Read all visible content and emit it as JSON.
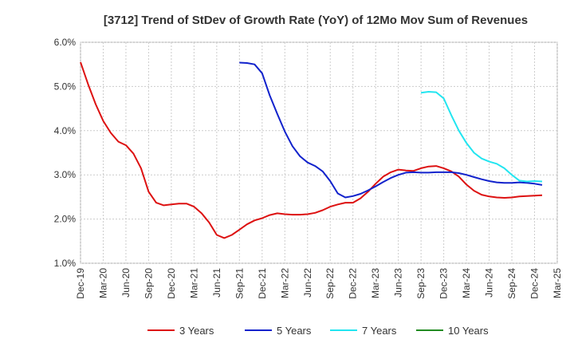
{
  "chart_data": {
    "type": "line",
    "title": "[3712]  Trend of StDev of Growth Rate (YoY) of 12Mo Mov Sum of Revenues",
    "xlabel": "",
    "ylabel": "",
    "ylim": [
      1.0,
      6.0
    ],
    "y_ticks": [
      1.0,
      2.0,
      3.0,
      4.0,
      5.0,
      6.0
    ],
    "y_tick_labels": [
      "1.0%",
      "2.0%",
      "3.0%",
      "4.0%",
      "5.0%",
      "6.0%"
    ],
    "x_tick_labels": [
      "Dec-19",
      "Mar-20",
      "Jun-20",
      "Sep-20",
      "Dec-20",
      "Mar-21",
      "Jun-21",
      "Sep-21",
      "Dec-21",
      "Mar-22",
      "Jun-22",
      "Sep-22",
      "Dec-22",
      "Mar-23",
      "Jun-23",
      "Sep-23",
      "Dec-23",
      "Mar-24",
      "Jun-24",
      "Sep-24",
      "Dec-24",
      "Mar-25"
    ],
    "x_range_months": [
      0,
      63
    ],
    "grid": true,
    "legend_position": "bottom",
    "series": [
      {
        "name": "3 Years",
        "color": "#dd1111",
        "start_month": 0,
        "values": [
          5.55,
          5.05,
          4.6,
          4.22,
          3.95,
          3.75,
          3.67,
          3.48,
          3.15,
          2.62,
          2.37,
          2.31,
          2.33,
          2.35,
          2.35,
          2.28,
          2.13,
          1.92,
          1.64,
          1.57,
          1.64,
          1.76,
          1.88,
          1.97,
          2.02,
          2.09,
          2.13,
          2.11,
          2.1,
          2.1,
          2.11,
          2.14,
          2.2,
          2.28,
          2.33,
          2.37,
          2.37,
          2.47,
          2.62,
          2.8,
          2.96,
          3.06,
          3.12,
          3.1,
          3.09,
          3.15,
          3.19,
          3.2,
          3.15,
          3.08,
          2.96,
          2.78,
          2.64,
          2.55,
          2.51,
          2.49,
          2.48,
          2.49,
          2.51,
          2.52,
          2.53,
          2.54
        ]
      },
      {
        "name": "5 Years",
        "color": "#1122cc",
        "start_month": 21,
        "values": [
          5.54,
          5.53,
          5.5,
          5.3,
          4.8,
          4.38,
          3.98,
          3.65,
          3.42,
          3.28,
          3.2,
          3.08,
          2.86,
          2.58,
          2.49,
          2.52,
          2.57,
          2.65,
          2.74,
          2.84,
          2.93,
          3.0,
          3.05,
          3.06,
          3.05,
          3.05,
          3.06,
          3.06,
          3.06,
          3.04,
          3.0,
          2.95,
          2.9,
          2.86,
          2.83,
          2.82,
          2.82,
          2.83,
          2.82,
          2.8,
          2.77
        ]
      },
      {
        "name": "7 Years",
        "color": "#22e5f0",
        "start_month": 45,
        "values": [
          4.86,
          4.88,
          4.87,
          4.73,
          4.35,
          4.0,
          3.72,
          3.5,
          3.37,
          3.3,
          3.25,
          3.15,
          3.0,
          2.87,
          2.85,
          2.86,
          2.85
        ]
      },
      {
        "name": "10 Years",
        "color": "#228b22",
        "start_month": 0,
        "values": []
      }
    ]
  }
}
